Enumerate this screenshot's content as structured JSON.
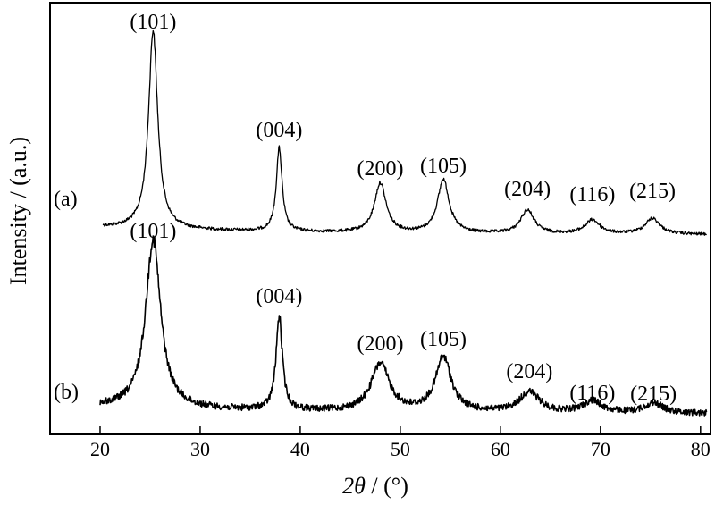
{
  "chart_data": {
    "type": "line",
    "xlabel_parts": {
      "symbol": "2θ",
      "unit": " / (°)"
    },
    "ylabel": "Intensity / (a.u.)",
    "xlim": [
      15,
      81
    ],
    "x_ticks": [
      "20",
      "30",
      "40",
      "50",
      "60",
      "70",
      "80"
    ],
    "x_tick_values": [
      20,
      30,
      40,
      50,
      60,
      70,
      80
    ],
    "y_ticks_visible": false,
    "grid": false,
    "series": [
      {
        "name": "(a)",
        "color": "#000000",
        "baseline": 0.0,
        "peaks": [
          {
            "x": 25.3,
            "height": 1.0,
            "label": "(101)"
          },
          {
            "x": 37.9,
            "height": 0.42,
            "label": "(004)"
          },
          {
            "x": 48.0,
            "height": 0.25,
            "label": "(200)"
          },
          {
            "x": 54.3,
            "height": 0.27,
            "label": "(105)"
          },
          {
            "x": 62.7,
            "height": 0.12,
            "label": "(204)"
          },
          {
            "x": 69.2,
            "height": 0.07,
            "label": "(116)"
          },
          {
            "x": 75.2,
            "height": 0.08,
            "label": "(215)"
          }
        ]
      },
      {
        "name": "(b)",
        "color": "#000000",
        "baseline": 0.0,
        "peaks": [
          {
            "x": 25.3,
            "height": 1.0,
            "label": "(101)"
          },
          {
            "x": 37.9,
            "height": 0.55,
            "label": "(004)"
          },
          {
            "x": 48.0,
            "height": 0.28,
            "label": "(200)"
          },
          {
            "x": 54.3,
            "height": 0.32,
            "label": "(105)"
          },
          {
            "x": 62.9,
            "height": 0.12,
            "label": "(204)"
          },
          {
            "x": 69.2,
            "height": 0.07,
            "label": "(116)"
          },
          {
            "x": 75.3,
            "height": 0.06,
            "label": "(215)"
          }
        ]
      }
    ]
  }
}
